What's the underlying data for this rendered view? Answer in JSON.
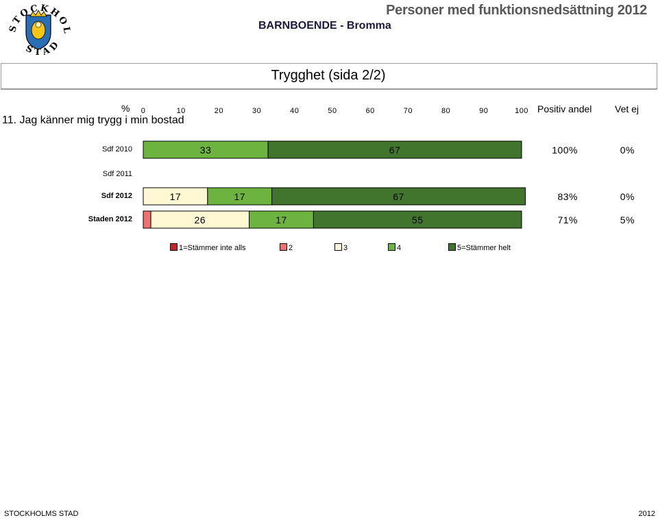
{
  "header": {
    "title": "Personer med funktionsnedsättning 2012",
    "subtitle": "BARNBOENDE - Bromma",
    "logo_text": "STOCKHOLMS STAD"
  },
  "section": {
    "title": "Trygghet (sida 2/2)"
  },
  "question": {
    "percent_label": "%",
    "text": "11. Jag känner mig trygg i min bostad",
    "col_positive": "Positiv andel",
    "col_unknown": "Vet ej"
  },
  "chart_data": {
    "type": "bar",
    "orientation": "horizontal",
    "stacked": true,
    "xlim": [
      0,
      100
    ],
    "ticks": [
      "0",
      "10",
      "20",
      "30",
      "40",
      "50",
      "60",
      "70",
      "80",
      "90",
      "100"
    ],
    "legend_position": "bottom",
    "categories": [
      {
        "label": "Sdf 2010",
        "bold": false
      },
      {
        "label": "Sdf 2011",
        "bold": false
      },
      {
        "label": "Sdf 2012",
        "bold": true
      },
      {
        "label": "Staden 2012",
        "bold": true
      }
    ],
    "series": [
      {
        "name": "1=Stämmer inte alls",
        "color": "#c0272d",
        "values": [
          0,
          null,
          0,
          0
        ]
      },
      {
        "name": "2",
        "color": "#f07270",
        "values": [
          0,
          null,
          0,
          2
        ]
      },
      {
        "name": "3",
        "color": "#fff8d2",
        "values": [
          0,
          null,
          17,
          26
        ]
      },
      {
        "name": "4",
        "color": "#6db33f",
        "values": [
          33,
          null,
          17,
          17
        ]
      },
      {
        "name": "5=Stämmer helt",
        "color": "#41752d",
        "values": [
          67,
          null,
          67,
          55
        ]
      }
    ],
    "positive_share": [
      "100%",
      "",
      "83%",
      "71%"
    ],
    "unknown_share": [
      "0%",
      "",
      "0%",
      "5%"
    ]
  },
  "footer": {
    "left": "STOCKHOLMS STAD",
    "right": "2012"
  }
}
